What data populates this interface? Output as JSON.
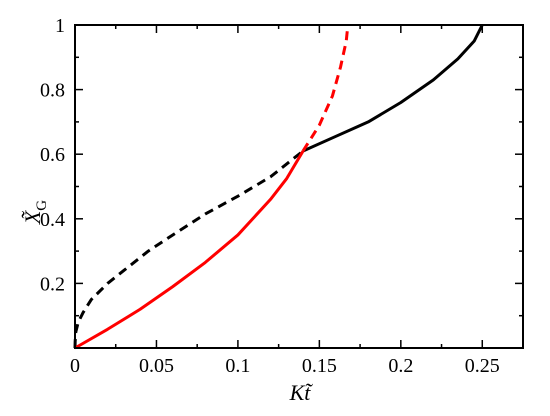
{
  "chart_data": {
    "type": "line",
    "xlabel": "Kt̃",
    "ylabel_main": "X̃",
    "ylabel_sub": "G",
    "xlim": [
      0,
      0.275
    ],
    "ylim": [
      0,
      1
    ],
    "x_ticks": [
      0,
      0.05,
      0.1,
      0.15,
      0.2,
      0.25
    ],
    "x_tick_labels": [
      "0",
      "0.05",
      "0.1",
      "0.15",
      "0.2",
      "0.25"
    ],
    "y_ticks": [
      0.2,
      0.4,
      0.6,
      0.8,
      1
    ],
    "y_tick_labels": [
      "0.2",
      "0.4",
      "0.6",
      "0.8",
      "1"
    ],
    "minor_x_step": 0.025,
    "minor_y_step": 0.1,
    "grid": false,
    "colors": {
      "black": "#000000",
      "red": "#ff0000"
    },
    "series": [
      {
        "color": "#000000",
        "style": "dashed",
        "points": [
          [
            0,
            0
          ],
          [
            0.0001,
            0.02
          ],
          [
            0.0005,
            0.05
          ],
          [
            0.002,
            0.08
          ],
          [
            0.005,
            0.11
          ],
          [
            0.01,
            0.15
          ],
          [
            0.02,
            0.2
          ],
          [
            0.03,
            0.24
          ],
          [
            0.045,
            0.3
          ],
          [
            0.06,
            0.35
          ],
          [
            0.08,
            0.415
          ],
          [
            0.1,
            0.47
          ],
          [
            0.12,
            0.53
          ],
          [
            0.14,
            0.61
          ]
        ]
      },
      {
        "color": "#000000",
        "style": "solid",
        "points": [
          [
            0.14,
            0.61
          ],
          [
            0.16,
            0.655
          ],
          [
            0.18,
            0.7
          ],
          [
            0.2,
            0.76
          ],
          [
            0.22,
            0.83
          ],
          [
            0.235,
            0.895
          ],
          [
            0.245,
            0.95
          ],
          [
            0.25,
            1.0
          ]
        ]
      },
      {
        "color": "#ff0000",
        "style": "solid",
        "points": [
          [
            0,
            0
          ],
          [
            0.02,
            0.058
          ],
          [
            0.04,
            0.12
          ],
          [
            0.06,
            0.19
          ],
          [
            0.08,
            0.265
          ],
          [
            0.1,
            0.35
          ],
          [
            0.12,
            0.46
          ],
          [
            0.13,
            0.525
          ],
          [
            0.14,
            0.61
          ]
        ]
      },
      {
        "color": "#ff0000",
        "style": "dashed",
        "points": [
          [
            0.14,
            0.61
          ],
          [
            0.15,
            0.69
          ],
          [
            0.158,
            0.78
          ],
          [
            0.163,
            0.87
          ],
          [
            0.1665,
            0.95
          ],
          [
            0.1675,
            1.0
          ]
        ]
      }
    ]
  }
}
